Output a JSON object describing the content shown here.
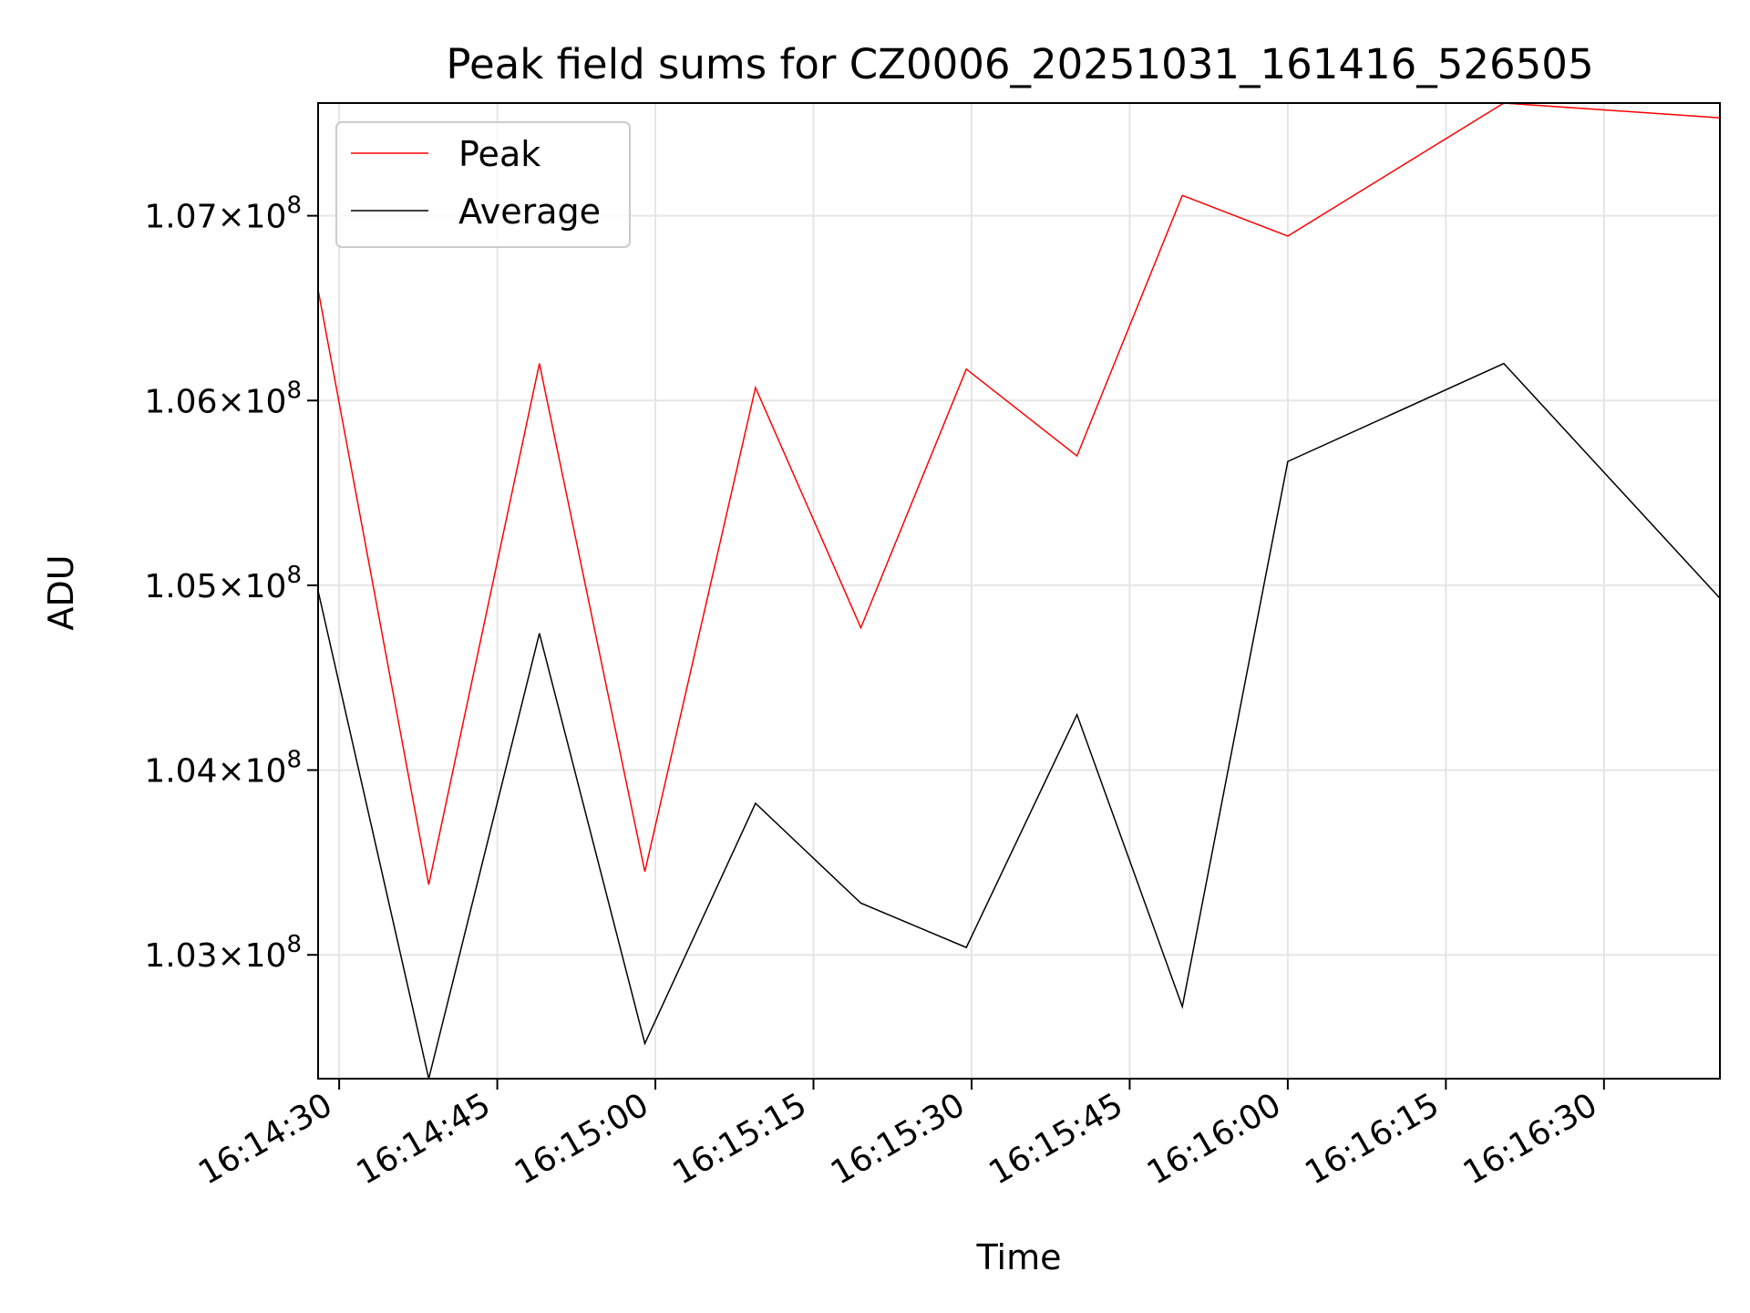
{
  "chart_data": {
    "type": "line",
    "title": "Peak field sums for CZ0006_20251031_161416_526505",
    "xlabel": "Time",
    "ylabel": "ADU",
    "x_tick_labels": [
      "16:14:30",
      "16:14:45",
      "16:15:00",
      "16:15:15",
      "16:15:30",
      "16:15:45",
      "16:16:00",
      "16:16:15",
      "16:16:30"
    ],
    "y_ticks": [
      {
        "mantissa": "1.03",
        "exponent": "8",
        "value": 103000000
      },
      {
        "mantissa": "1.04",
        "exponent": "8",
        "value": 104000000
      },
      {
        "mantissa": "1.05",
        "exponent": "8",
        "value": 105000000
      },
      {
        "mantissa": "1.06",
        "exponent": "8",
        "value": 106000000
      },
      {
        "mantissa": "1.07",
        "exponent": "8",
        "value": 107000000
      }
    ],
    "y_tick_times": "×",
    "y_tick_base": "10",
    "xlim_seconds": [
      88,
      221
    ],
    "x_tick_seconds": [
      90,
      105,
      120,
      135,
      150,
      165,
      180,
      195,
      210
    ],
    "ylim": [
      102330000,
      107610000
    ],
    "grid": true,
    "legend_location": "upper-left",
    "series": [
      {
        "name": "Peak",
        "color": "#ff0000",
        "x_seconds": [
          88,
          98.5,
          109,
          119,
          129.5,
          139.5,
          149.5,
          160,
          170,
          180,
          200.5,
          221
        ],
        "values": [
          106600000,
          103380000,
          106200000,
          103450000,
          106070000,
          104770000,
          106170000,
          105700000,
          107110000,
          106890000,
          107610000,
          107530000
        ]
      },
      {
        "name": "Average",
        "color": "#000000",
        "x_seconds": [
          88,
          98.5,
          109,
          119,
          129.5,
          139.5,
          149.5,
          160,
          170,
          180,
          200.5,
          221
        ],
        "values": [
          104970000,
          102330000,
          104740000,
          102520000,
          103820000,
          103280000,
          103040000,
          104300000,
          102720000,
          105670000,
          106200000,
          104930000
        ]
      }
    ]
  }
}
